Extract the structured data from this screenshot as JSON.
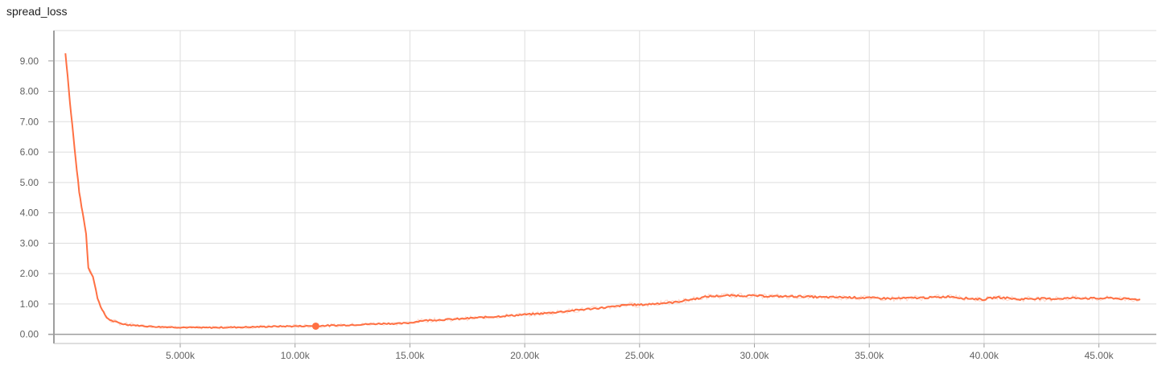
{
  "chart_data": {
    "type": "line",
    "title": "spread_loss",
    "xlabel": "",
    "ylabel": "",
    "xlim": [
      -500,
      47500
    ],
    "ylim": [
      -0.3,
      10.0
    ],
    "x_ticks": [
      5000,
      10000,
      15000,
      20000,
      25000,
      30000,
      35000,
      40000,
      45000
    ],
    "x_tick_labels": [
      "5.000k",
      "10.00k",
      "15.00k",
      "20.00k",
      "25.00k",
      "30.00k",
      "35.00k",
      "40.00k",
      "45.00k"
    ],
    "y_ticks": [
      0,
      1,
      2,
      3,
      4,
      5,
      6,
      7,
      8,
      9
    ],
    "y_tick_labels": [
      "0.00",
      "1.00",
      "2.00",
      "3.00",
      "4.00",
      "5.00",
      "6.00",
      "7.00",
      "8.00",
      "9.00"
    ],
    "grid": true,
    "line_color": "#ff7043",
    "raw_color": "#ffccbc",
    "highlight_point": {
      "x": 10900,
      "y": 0.27
    },
    "series": [
      {
        "x": [
          0,
          100,
          200,
          300,
          400,
          500,
          600,
          700,
          800,
          900,
          1000,
          1200,
          1400,
          1600,
          1800,
          2000,
          2300,
          2600,
          3000,
          3500,
          4000,
          4500,
          5000,
          6000,
          7000,
          8000,
          9000,
          10000,
          11000,
          12000,
          13000,
          14000,
          14500,
          15000,
          15500,
          16000,
          17000,
          18000,
          19000,
          20000,
          21000,
          22000,
          23000,
          24000,
          24500,
          25000,
          25500,
          26000,
          26500,
          27000,
          27500,
          28000,
          29000,
          30000,
          31000,
          32000,
          33000,
          34000,
          35000,
          36000,
          37000,
          38000,
          38500,
          39000,
          40000,
          40500,
          41000,
          41500,
          42000,
          43000,
          44000,
          45000,
          45500,
          46000,
          46800
        ],
        "y": [
          9.25,
          8.5,
          7.6,
          6.9,
          6.1,
          5.4,
          4.7,
          4.2,
          3.8,
          3.3,
          2.2,
          1.9,
          1.2,
          0.8,
          0.55,
          0.45,
          0.38,
          0.33,
          0.3,
          0.27,
          0.25,
          0.24,
          0.23,
          0.22,
          0.23,
          0.24,
          0.26,
          0.27,
          0.28,
          0.3,
          0.33,
          0.36,
          0.35,
          0.38,
          0.45,
          0.47,
          0.5,
          0.55,
          0.6,
          0.65,
          0.7,
          0.78,
          0.85,
          0.92,
          0.98,
          0.97,
          1.0,
          1.03,
          1.05,
          1.12,
          1.18,
          1.25,
          1.28,
          1.27,
          1.25,
          1.25,
          1.22,
          1.22,
          1.2,
          1.18,
          1.2,
          1.22,
          1.25,
          1.2,
          1.15,
          1.22,
          1.2,
          1.15,
          1.18,
          1.17,
          1.2,
          1.18,
          1.2,
          1.17,
          1.15
        ]
      }
    ]
  }
}
